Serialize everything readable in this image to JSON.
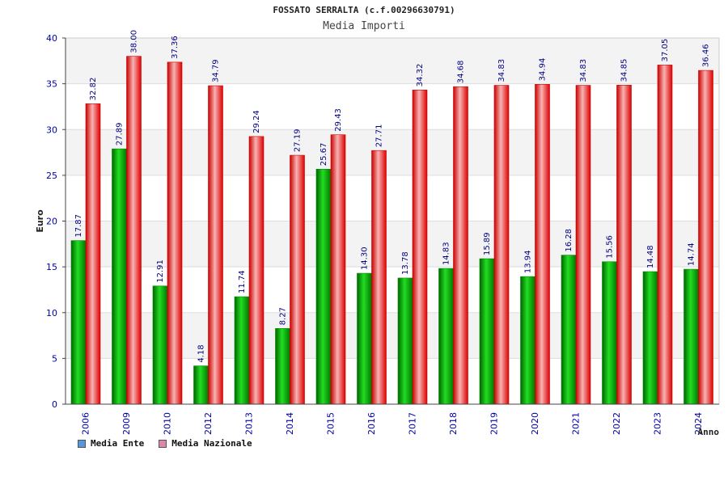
{
  "title": "FOSSATO SERRALTA (c.f.00296630791)",
  "subtitle": "Media Importi",
  "legend": [
    {
      "label": "Media Ente",
      "color": "#5599dd"
    },
    {
      "label": "Media Nazionale",
      "color": "#dd88aa"
    }
  ],
  "chart_data": {
    "type": "bar",
    "title": "Media Importi",
    "xlabel": "Anno",
    "ylabel": "Euro",
    "ylim": [
      0,
      40
    ],
    "yticks": [
      0,
      5,
      10,
      15,
      20,
      25,
      30,
      35,
      40
    ],
    "categories": [
      "2006",
      "2009",
      "2010",
      "2012",
      "2013",
      "2014",
      "2015",
      "2016",
      "2017",
      "2018",
      "2019",
      "2020",
      "2021",
      "2022",
      "2023",
      "2024"
    ],
    "series": [
      {
        "name": "Media Ente",
        "color": "#00aa00",
        "values": [
          17.87,
          27.89,
          12.91,
          4.18,
          11.74,
          8.27,
          25.67,
          14.3,
          13.78,
          14.83,
          15.89,
          13.94,
          16.28,
          15.56,
          14.48,
          14.74
        ],
        "labels": [
          "17.87",
          "27.89",
          "12.91",
          "4.18",
          "11.74",
          "8.27",
          "25.67",
          "14.30",
          "13.78",
          "14.83",
          "15.89",
          "13.94",
          "16.28",
          "15.56",
          "14.48",
          "14.74"
        ]
      },
      {
        "name": "Media Nazionale",
        "color": "#dd0000",
        "values": [
          32.82,
          38.0,
          37.36,
          34.79,
          29.24,
          27.19,
          29.43,
          27.71,
          34.32,
          34.68,
          34.83,
          34.94,
          34.83,
          34.85,
          37.05,
          36.46
        ],
        "labels": [
          "32.82",
          "38.00",
          "37.36",
          "34.79",
          "29.24",
          "27.19",
          "29.43",
          "27.71",
          "34.32",
          "34.68",
          "34.83",
          "34.94",
          "34.83",
          "34.85",
          "37.05",
          "36.46"
        ]
      }
    ]
  }
}
